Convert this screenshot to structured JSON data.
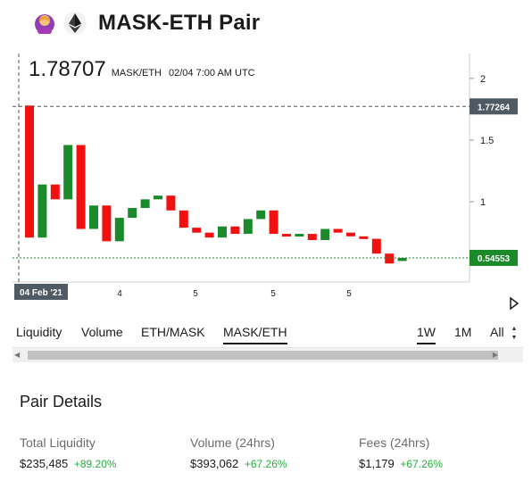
{
  "header": {
    "title": "MASK-ETH Pair",
    "icons": [
      "mask-token-icon",
      "eth-token-icon"
    ]
  },
  "chart_header": {
    "price": "1.78707",
    "pair": "MASK/ETH",
    "time": "02/04 7:00 AM UTC"
  },
  "chart_data": {
    "type": "candlestick",
    "y_ticks": [
      "2",
      "1.5",
      "1"
    ],
    "x_labels": [
      "04 Feb '21",
      "4",
      "5",
      "5",
      "5"
    ],
    "ylim": [
      0.35,
      2.1
    ],
    "crosshair_price": 1.77264,
    "crosshair_label": "1.77264",
    "last_price": 0.54553,
    "last_label": "0.54553",
    "candles": [
      {
        "open": 1.78,
        "close": 0.71,
        "color": "red"
      },
      {
        "open": 0.71,
        "close": 1.14,
        "color": "green"
      },
      {
        "open": 1.14,
        "close": 1.02,
        "color": "red"
      },
      {
        "open": 1.02,
        "close": 1.46,
        "color": "green"
      },
      {
        "open": 1.46,
        "close": 0.78,
        "color": "red"
      },
      {
        "open": 0.78,
        "close": 0.97,
        "color": "green"
      },
      {
        "open": 0.97,
        "close": 0.68,
        "color": "red"
      },
      {
        "open": 0.68,
        "close": 0.87,
        "color": "green"
      },
      {
        "open": 0.87,
        "close": 0.95,
        "color": "green"
      },
      {
        "open": 0.95,
        "close": 1.02,
        "color": "green"
      },
      {
        "open": 1.02,
        "close": 1.05,
        "color": "green"
      },
      {
        "open": 1.05,
        "close": 0.93,
        "color": "red"
      },
      {
        "open": 0.93,
        "close": 0.79,
        "color": "red"
      },
      {
        "open": 0.79,
        "close": 0.75,
        "color": "red"
      },
      {
        "open": 0.75,
        "close": 0.71,
        "color": "red"
      },
      {
        "open": 0.71,
        "close": 0.8,
        "color": "green"
      },
      {
        "open": 0.8,
        "close": 0.74,
        "color": "red"
      },
      {
        "open": 0.74,
        "close": 0.86,
        "color": "green"
      },
      {
        "open": 0.86,
        "close": 0.93,
        "color": "green"
      },
      {
        "open": 0.93,
        "close": 0.74,
        "color": "red"
      },
      {
        "open": 0.74,
        "close": 0.72,
        "color": "red"
      },
      {
        "open": 0.72,
        "close": 0.74,
        "color": "green"
      },
      {
        "open": 0.74,
        "close": 0.69,
        "color": "red"
      },
      {
        "open": 0.69,
        "close": 0.78,
        "color": "green"
      },
      {
        "open": 0.78,
        "close": 0.75,
        "color": "red"
      },
      {
        "open": 0.75,
        "close": 0.72,
        "color": "red"
      },
      {
        "open": 0.72,
        "close": 0.7,
        "color": "red"
      },
      {
        "open": 0.7,
        "close": 0.58,
        "color": "red"
      },
      {
        "open": 0.58,
        "close": 0.5,
        "color": "red"
      },
      {
        "open": 0.52,
        "close": 0.545,
        "color": "green"
      }
    ],
    "colors": {
      "up": "#1a8a2a",
      "down": "#f21010",
      "last_line": "#1a8a2a",
      "crosshair": "#555555",
      "label_bg": "#505a64",
      "last_bg": "#1a8a2a"
    }
  },
  "tabs": {
    "liquidity": "Liquidity",
    "volume": "Volume",
    "eth_mask": "ETH/MASK",
    "mask_eth": "MASK/ETH",
    "w1": "1W",
    "m1": "1M",
    "all": "All"
  },
  "details": {
    "title": "Pair Details",
    "liquidity": {
      "label": "Total Liquidity",
      "value": "$235,485",
      "change": "+89.20%"
    },
    "volume": {
      "label": "Volume (24hrs)",
      "value": "$393,062",
      "change": "+67.26%"
    },
    "fees": {
      "label": "Fees (24hrs)",
      "value": "$1,179",
      "change": "+67.26%"
    }
  }
}
